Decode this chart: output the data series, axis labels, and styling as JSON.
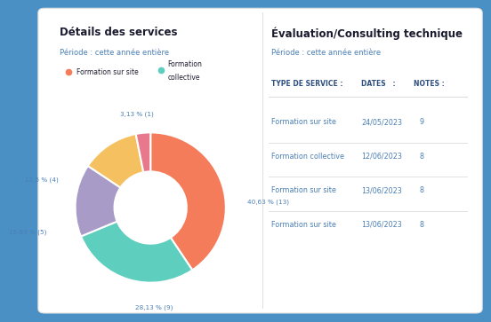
{
  "background_color": "#4a90c4",
  "card_color": "#ffffff",
  "left_title": "Détails des services",
  "left_subtitle": "Période : cette année entière",
  "right_title": "Évaluation/Consulting technique",
  "right_subtitle": "Période : cette année entière",
  "legend_items": [
    {
      "label": "Formation sur site",
      "color": "#f47c5a"
    },
    {
      "label": "Formation\ncollective",
      "color": "#5ecfbf"
    }
  ],
  "pie_values": [
    40.63,
    28.13,
    15.63,
    12.5,
    3.13
  ],
  "pie_labels": [
    "40,63 % (13)",
    "28,13 % (9)",
    "15,63 % (5)",
    "12,5 % (4)",
    "3,13 % (1)"
  ],
  "pie_colors": [
    "#f47c5a",
    "#5ecfbf",
    "#a89bc8",
    "#f4c060",
    "#e8798c"
  ],
  "table_headers": [
    "TYPE DE SERVICE ❘",
    "DATES",
    "❘",
    "NOTES ❘"
  ],
  "table_header_cols": [
    "TYPE DE SERVICE :",
    "DATES",
    ":",
    "NOTES :"
  ],
  "table_rows": [
    [
      "Formation sur site",
      "24/05/2023",
      "9"
    ],
    [
      "Formation collective",
      "12/06/2023",
      "8"
    ],
    [
      "Formation sur site",
      "13/06/2023",
      "8"
    ],
    [
      "Formation sur site",
      "13/06/2023",
      "8"
    ]
  ],
  "table_text_color": "#4a7fb5",
  "header_text_color": "#2d5080",
  "title_color": "#1a1a2e",
  "subtitle_color": "#4a7fb5",
  "label_color": "#4a7fb5",
  "divider_color": "#dddddd"
}
